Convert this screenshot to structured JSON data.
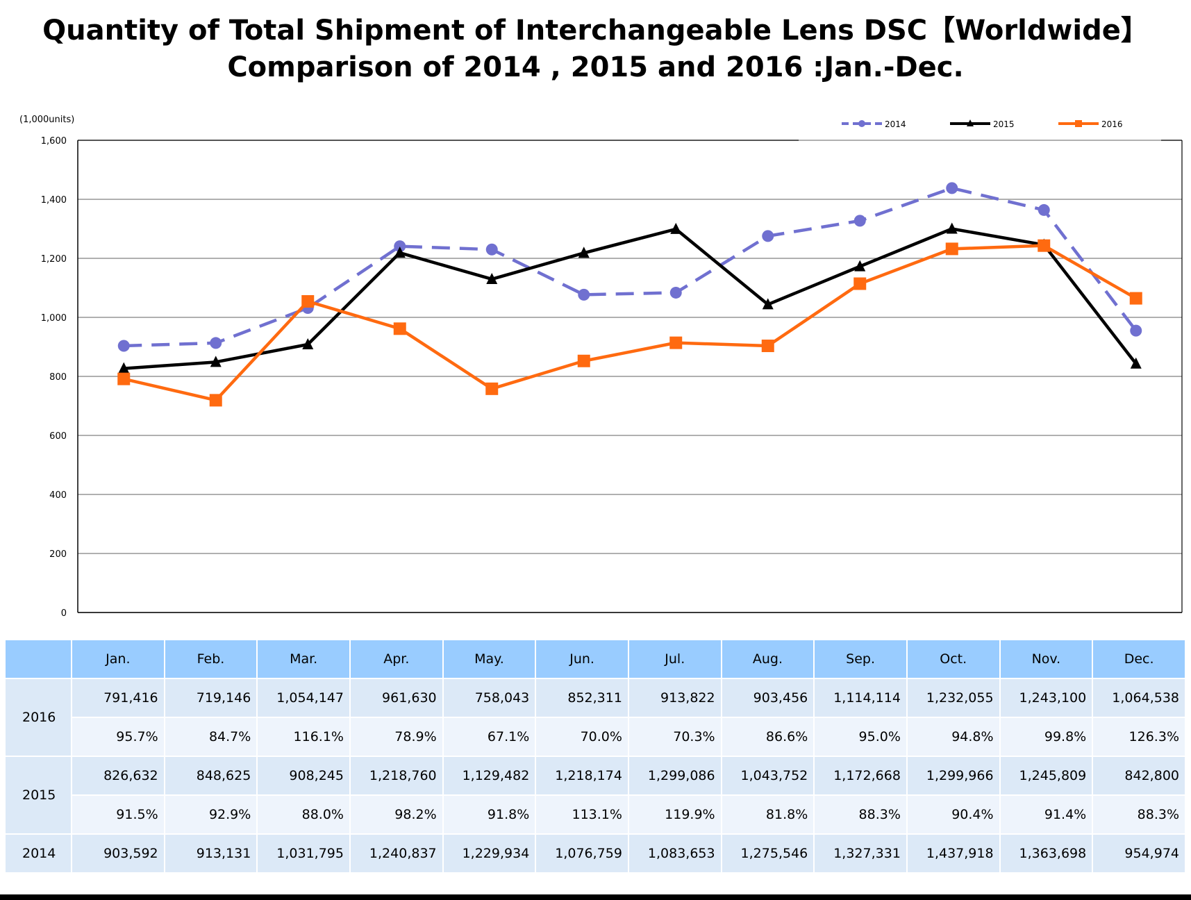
{
  "chart_data": {
    "type": "line",
    "title": [
      "Quantity of Total Shipment of Interchangeable Lens DSC【Worldwide】",
      "Comparison of 2014 , 2015 and 2016 :Jan.-Dec."
    ],
    "unit_label": "(1,000units)",
    "categories": [
      "Jan.",
      "Feb.",
      "Mar.",
      "Apr.",
      "May.",
      "Jun.",
      "Jul.",
      "Aug.",
      "Sep.",
      "Oct.",
      "Nov.",
      "Dec."
    ],
    "ylim": [
      0,
      1600
    ],
    "yticks": [
      "0",
      "200",
      "400",
      "600",
      "800",
      "1,000",
      "1,200",
      "1,400",
      "1,600"
    ],
    "grid": true,
    "legend_position": "top-right",
    "series": [
      {
        "name": "2014",
        "color": "#7070d0",
        "marker": "circle",
        "dashed": true,
        "values": [
          903.592,
          913.131,
          1031.795,
          1240.837,
          1229.934,
          1076.759,
          1083.653,
          1275.546,
          1327.331,
          1437.918,
          1363.698,
          954.974
        ]
      },
      {
        "name": "2015",
        "color": "#000000",
        "marker": "triangle",
        "dashed": false,
        "values": [
          826.632,
          848.625,
          908.245,
          1218.76,
          1129.482,
          1218.174,
          1299.086,
          1043.752,
          1172.668,
          1299.966,
          1245.809,
          842.8
        ]
      },
      {
        "name": "2016",
        "color": "#ff6a10",
        "marker": "square",
        "dashed": false,
        "values": [
          791.416,
          719.146,
          1054.147,
          961.63,
          758.043,
          852.311,
          913.822,
          903.456,
          1114.114,
          1232.055,
          1243.1,
          1064.538
        ]
      }
    ]
  },
  "table": {
    "header": [
      "Jan.",
      "Feb.",
      "Mar.",
      "Apr.",
      "May.",
      "Jun.",
      "Jul.",
      "Aug.",
      "Sep.",
      "Oct.",
      "Nov.",
      "Dec."
    ],
    "rows": [
      {
        "label": "2016",
        "values": [
          "791,416",
          "719,146",
          "1,054,147",
          "961,630",
          "758,043",
          "852,311",
          "913,822",
          "903,456",
          "1,114,114",
          "1,232,055",
          "1,243,100",
          "1,064,538"
        ],
        "pct": [
          "95.7%",
          "84.7%",
          "116.1%",
          "78.9%",
          "67.1%",
          "70.0%",
          "70.3%",
          "86.6%",
          "95.0%",
          "94.8%",
          "99.8%",
          "126.3%"
        ]
      },
      {
        "label": "2015",
        "values": [
          "826,632",
          "848,625",
          "908,245",
          "1,218,760",
          "1,129,482",
          "1,218,174",
          "1,299,086",
          "1,043,752",
          "1,172,668",
          "1,299,966",
          "1,245,809",
          "842,800"
        ],
        "pct": [
          "91.5%",
          "92.9%",
          "88.0%",
          "98.2%",
          "91.8%",
          "113.1%",
          "119.9%",
          "81.8%",
          "88.3%",
          "90.4%",
          "91.4%",
          "88.3%"
        ]
      },
      {
        "label": "2014",
        "values": [
          "903,592",
          "913,131",
          "1,031,795",
          "1,240,837",
          "1,229,934",
          "1,076,759",
          "1,083,653",
          "1,275,546",
          "1,327,331",
          "1,437,918",
          "1,363,698",
          "954,974"
        ]
      }
    ]
  }
}
